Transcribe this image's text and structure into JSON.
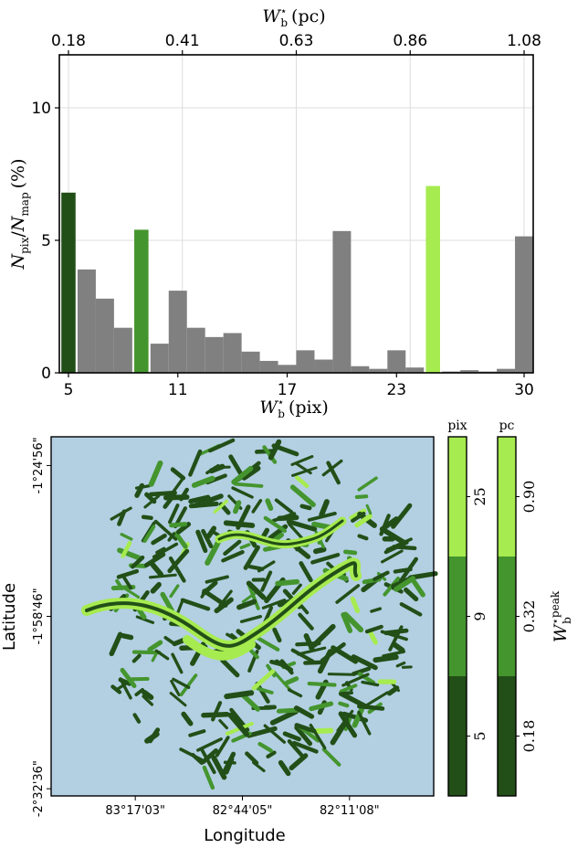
{
  "chart_data": [
    {
      "type": "bar",
      "xlabel": "W_b* (pix)",
      "ylabel": "N_pix/N_map (%)",
      "top_xlabel": "W_b* (pc)",
      "xlim": [
        4.5,
        30.5
      ],
      "ylim": [
        0,
        12
      ],
      "x": [
        5,
        6,
        7,
        8,
        9,
        10,
        11,
        12,
        13,
        14,
        15,
        16,
        17,
        18,
        19,
        20,
        21,
        22,
        23,
        24,
        25,
        26,
        27,
        28,
        29,
        30
      ],
      "values": [
        6.8,
        3.9,
        2.8,
        1.7,
        5.4,
        1.1,
        3.1,
        1.7,
        1.35,
        1.5,
        0.8,
        0.45,
        0.3,
        0.85,
        0.5,
        5.35,
        0.25,
        0.15,
        0.85,
        0.2,
        7.05,
        0.05,
        0.1,
        0.05,
        0.15,
        5.15
      ],
      "highlight": {
        "5": "#224f17",
        "9": "#44952e",
        "25": "#a6eb4f"
      },
      "base_color": "#808080",
      "xticks": [
        5,
        11,
        17,
        23,
        30
      ],
      "yticks": [
        0,
        5,
        10
      ],
      "top_ticks": [
        {
          "pos": 5,
          "label": "0.18"
        },
        {
          "pos": 11.25,
          "label": "0.41"
        },
        {
          "pos": 17.5,
          "label": "0.63"
        },
        {
          "pos": 23.75,
          "label": "0.86"
        },
        {
          "pos": 30,
          "label": "1.08"
        }
      ],
      "grid": true
    },
    {
      "type": "map",
      "xlabel": "Longitude",
      "ylabel": "Latitude",
      "background": "#b3cfe2",
      "lon_ticks": [
        "83°17'03\"",
        "82°44'05\"",
        "82°11'08\""
      ],
      "lat_ticks": [
        "-1°24'56\"",
        "-1°58'46\"",
        "-2°32'36\""
      ],
      "legend_label": "W_b*peak",
      "colorbar_pix": {
        "title": "pix",
        "labels": [
          "25",
          "9",
          "5"
        ]
      },
      "colorbar_pc": {
        "title": "pc",
        "labels": [
          "0.90",
          "0.32",
          "0.18"
        ]
      },
      "colors": [
        "#a6eb4f",
        "#44952e",
        "#224f17"
      ]
    }
  ]
}
